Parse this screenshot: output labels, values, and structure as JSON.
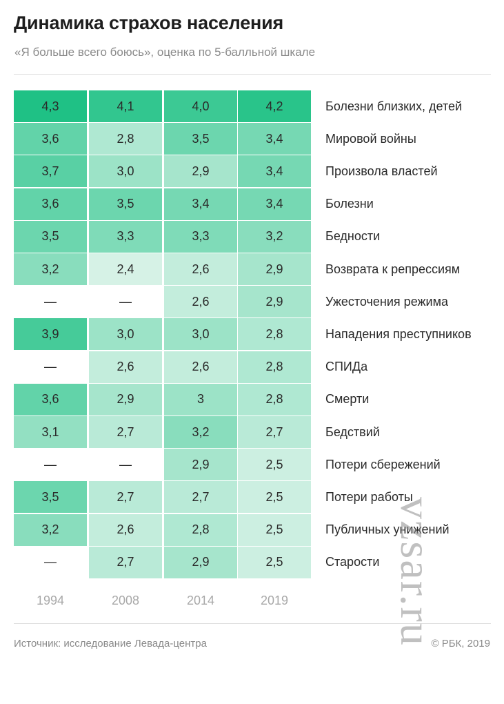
{
  "header": {
    "title": "Динамика страхов населения",
    "subtitle": "«Я больше всего боюсь», оценка по 5-балльной шкале"
  },
  "footer": {
    "source": "Источник: исследование Левада-центра",
    "credit": "© РБК, 2019"
  },
  "watermark": "vzsar.ru",
  "colors": {
    "empty": "#ffffff",
    "low": "#d6f2e6",
    "high": "#1fc185"
  },
  "chart_data": {
    "type": "heatmap",
    "x": [
      "1994",
      "2008",
      "2014",
      "2019"
    ],
    "rows": [
      {
        "label": "Болезни близких, детей",
        "values": [
          "4,3",
          "4,1",
          "4,0",
          "4,2"
        ]
      },
      {
        "label": "Мировой войны",
        "values": [
          "3,6",
          "2,8",
          "3,5",
          "3,4"
        ]
      },
      {
        "label": "Произвола властей",
        "values": [
          "3,7",
          "3,0",
          "2,9",
          "3,4"
        ]
      },
      {
        "label": "Болезни",
        "values": [
          "3,6",
          "3,5",
          "3,4",
          "3,4"
        ]
      },
      {
        "label": "Бедности",
        "values": [
          "3,5",
          "3,3",
          "3,3",
          "3,2"
        ]
      },
      {
        "label": "Возврата к репрессиям",
        "values": [
          "3,2",
          "2,4",
          "2,6",
          "2,9"
        ]
      },
      {
        "label": "Ужесточения режима",
        "values": [
          "—",
          "—",
          "2,6",
          "2,9"
        ]
      },
      {
        "label": "Нападения преступников",
        "values": [
          "3,9",
          "3,0",
          "3,0",
          "2,8"
        ]
      },
      {
        "label": "СПИДа",
        "values": [
          "—",
          "2,6",
          "2,6",
          "2,8"
        ]
      },
      {
        "label": "Смерти",
        "values": [
          "3,6",
          "2,9",
          "3",
          "2,8"
        ]
      },
      {
        "label": "Бедствий",
        "values": [
          "3,1",
          "2,7",
          "3,2",
          "2,7"
        ]
      },
      {
        "label": "Потери сбережений",
        "values": [
          "—",
          "—",
          "2,9",
          "2,5"
        ]
      },
      {
        "label": "Потери работы",
        "values": [
          "3,5",
          "2,7",
          "2,7",
          "2,5"
        ]
      },
      {
        "label": "Публичных унижений",
        "values": [
          "3,2",
          "2,6",
          "2,8",
          "2,5"
        ]
      },
      {
        "label": "Старости",
        "values": [
          "—",
          "2,7",
          "2,9",
          "2,5"
        ]
      }
    ]
  }
}
